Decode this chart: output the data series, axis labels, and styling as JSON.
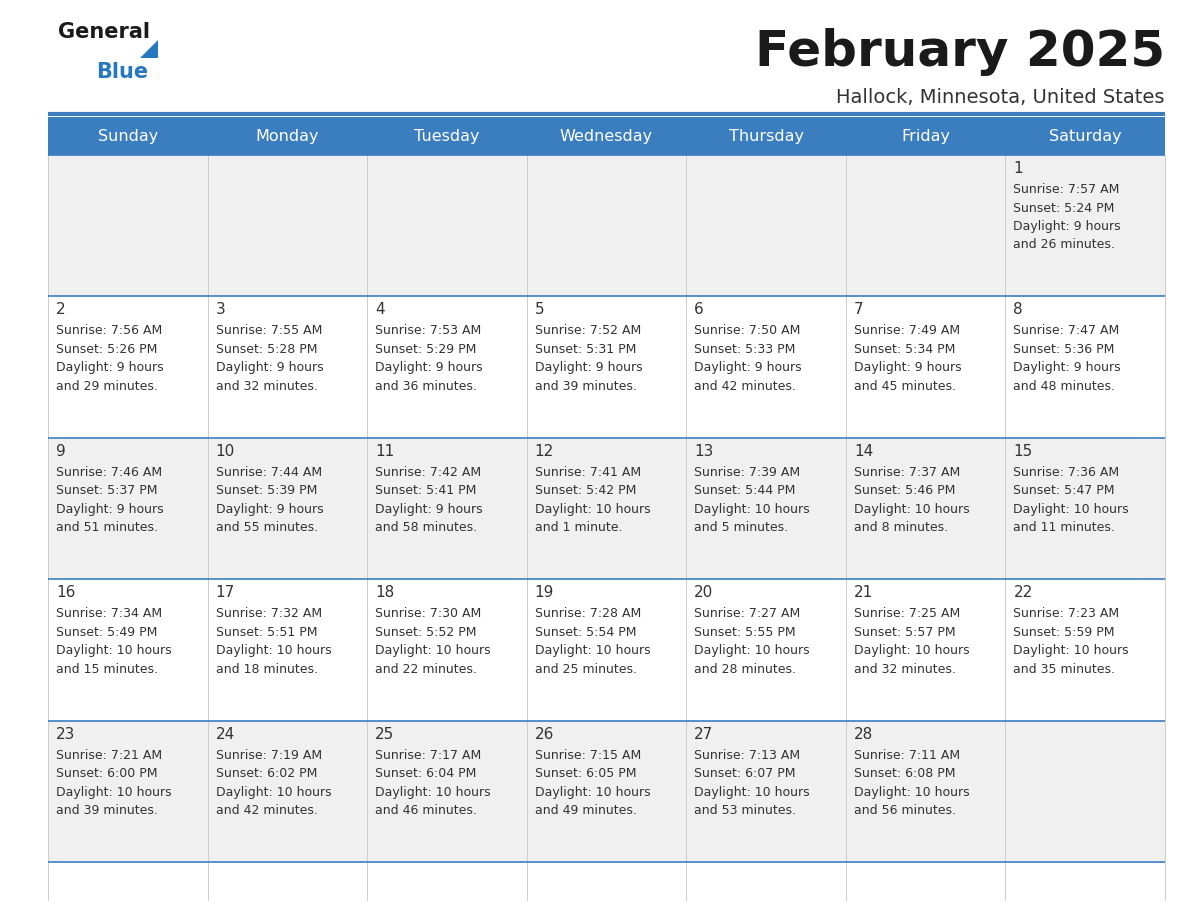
{
  "title": "February 2025",
  "subtitle": "Hallock, Minnesota, United States",
  "days_of_week": [
    "Sunday",
    "Monday",
    "Tuesday",
    "Wednesday",
    "Thursday",
    "Friday",
    "Saturday"
  ],
  "header_bg": "#3a7ebf",
  "header_text": "#ffffff",
  "cell_bg_odd": "#f0f0f0",
  "cell_bg_even": "#ffffff",
  "day_num_color": "#333333",
  "text_color": "#333333",
  "line_color": "#3a7ebf",
  "title_color": "#1a1a1a",
  "subtitle_color": "#333333",
  "logo_general_color": "#1a1a1a",
  "logo_blue_color": "#2878c0",
  "weeks": [
    [
      null,
      null,
      null,
      null,
      null,
      null,
      1
    ],
    [
      2,
      3,
      4,
      5,
      6,
      7,
      8
    ],
    [
      9,
      10,
      11,
      12,
      13,
      14,
      15
    ],
    [
      16,
      17,
      18,
      19,
      20,
      21,
      22
    ],
    [
      23,
      24,
      25,
      26,
      27,
      28,
      null
    ]
  ],
  "day_data": {
    "1": {
      "sunrise": "7:57 AM",
      "sunset": "5:24 PM",
      "daylight_line1": "Daylight: 9 hours",
      "daylight_line2": "and 26 minutes."
    },
    "2": {
      "sunrise": "7:56 AM",
      "sunset": "5:26 PM",
      "daylight_line1": "Daylight: 9 hours",
      "daylight_line2": "and 29 minutes."
    },
    "3": {
      "sunrise": "7:55 AM",
      "sunset": "5:28 PM",
      "daylight_line1": "Daylight: 9 hours",
      "daylight_line2": "and 32 minutes."
    },
    "4": {
      "sunrise": "7:53 AM",
      "sunset": "5:29 PM",
      "daylight_line1": "Daylight: 9 hours",
      "daylight_line2": "and 36 minutes."
    },
    "5": {
      "sunrise": "7:52 AM",
      "sunset": "5:31 PM",
      "daylight_line1": "Daylight: 9 hours",
      "daylight_line2": "and 39 minutes."
    },
    "6": {
      "sunrise": "7:50 AM",
      "sunset": "5:33 PM",
      "daylight_line1": "Daylight: 9 hours",
      "daylight_line2": "and 42 minutes."
    },
    "7": {
      "sunrise": "7:49 AM",
      "sunset": "5:34 PM",
      "daylight_line1": "Daylight: 9 hours",
      "daylight_line2": "and 45 minutes."
    },
    "8": {
      "sunrise": "7:47 AM",
      "sunset": "5:36 PM",
      "daylight_line1": "Daylight: 9 hours",
      "daylight_line2": "and 48 minutes."
    },
    "9": {
      "sunrise": "7:46 AM",
      "sunset": "5:37 PM",
      "daylight_line1": "Daylight: 9 hours",
      "daylight_line2": "and 51 minutes."
    },
    "10": {
      "sunrise": "7:44 AM",
      "sunset": "5:39 PM",
      "daylight_line1": "Daylight: 9 hours",
      "daylight_line2": "and 55 minutes."
    },
    "11": {
      "sunrise": "7:42 AM",
      "sunset": "5:41 PM",
      "daylight_line1": "Daylight: 9 hours",
      "daylight_line2": "and 58 minutes."
    },
    "12": {
      "sunrise": "7:41 AM",
      "sunset": "5:42 PM",
      "daylight_line1": "Daylight: 10 hours",
      "daylight_line2": "and 1 minute."
    },
    "13": {
      "sunrise": "7:39 AM",
      "sunset": "5:44 PM",
      "daylight_line1": "Daylight: 10 hours",
      "daylight_line2": "and 5 minutes."
    },
    "14": {
      "sunrise": "7:37 AM",
      "sunset": "5:46 PM",
      "daylight_line1": "Daylight: 10 hours",
      "daylight_line2": "and 8 minutes."
    },
    "15": {
      "sunrise": "7:36 AM",
      "sunset": "5:47 PM",
      "daylight_line1": "Daylight: 10 hours",
      "daylight_line2": "and 11 minutes."
    },
    "16": {
      "sunrise": "7:34 AM",
      "sunset": "5:49 PM",
      "daylight_line1": "Daylight: 10 hours",
      "daylight_line2": "and 15 minutes."
    },
    "17": {
      "sunrise": "7:32 AM",
      "sunset": "5:51 PM",
      "daylight_line1": "Daylight: 10 hours",
      "daylight_line2": "and 18 minutes."
    },
    "18": {
      "sunrise": "7:30 AM",
      "sunset": "5:52 PM",
      "daylight_line1": "Daylight: 10 hours",
      "daylight_line2": "and 22 minutes."
    },
    "19": {
      "sunrise": "7:28 AM",
      "sunset": "5:54 PM",
      "daylight_line1": "Daylight: 10 hours",
      "daylight_line2": "and 25 minutes."
    },
    "20": {
      "sunrise": "7:27 AM",
      "sunset": "5:55 PM",
      "daylight_line1": "Daylight: 10 hours",
      "daylight_line2": "and 28 minutes."
    },
    "21": {
      "sunrise": "7:25 AM",
      "sunset": "5:57 PM",
      "daylight_line1": "Daylight: 10 hours",
      "daylight_line2": "and 32 minutes."
    },
    "22": {
      "sunrise": "7:23 AM",
      "sunset": "5:59 PM",
      "daylight_line1": "Daylight: 10 hours",
      "daylight_line2": "and 35 minutes."
    },
    "23": {
      "sunrise": "7:21 AM",
      "sunset": "6:00 PM",
      "daylight_line1": "Daylight: 10 hours",
      "daylight_line2": "and 39 minutes."
    },
    "24": {
      "sunrise": "7:19 AM",
      "sunset": "6:02 PM",
      "daylight_line1": "Daylight: 10 hours",
      "daylight_line2": "and 42 minutes."
    },
    "25": {
      "sunrise": "7:17 AM",
      "sunset": "6:04 PM",
      "daylight_line1": "Daylight: 10 hours",
      "daylight_line2": "and 46 minutes."
    },
    "26": {
      "sunrise": "7:15 AM",
      "sunset": "6:05 PM",
      "daylight_line1": "Daylight: 10 hours",
      "daylight_line2": "and 49 minutes."
    },
    "27": {
      "sunrise": "7:13 AM",
      "sunset": "6:07 PM",
      "daylight_line1": "Daylight: 10 hours",
      "daylight_line2": "and 53 minutes."
    },
    "28": {
      "sunrise": "7:11 AM",
      "sunset": "6:08 PM",
      "daylight_line1": "Daylight: 10 hours",
      "daylight_line2": "and 56 minutes."
    }
  }
}
